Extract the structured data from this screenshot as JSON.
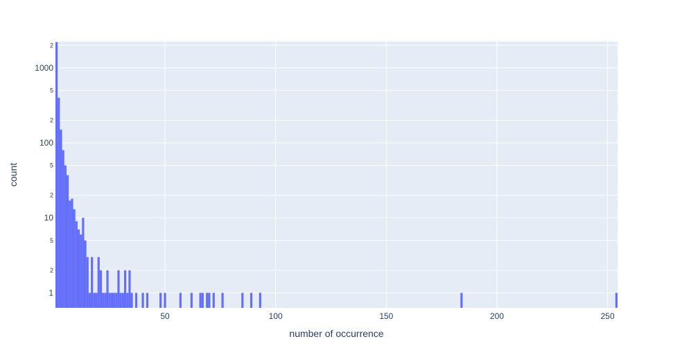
{
  "chart_data": {
    "type": "bar",
    "subtype": "histogram",
    "xlabel": "number of occurrence",
    "ylabel": "count",
    "y_scale": "log",
    "xlim": [
      1,
      254
    ],
    "ylim_log10": [
      -0.2,
      3.35
    ],
    "x_ticks": [
      "50",
      "100",
      "150",
      "200",
      "250"
    ],
    "y_major_ticks": [
      "1",
      "10",
      "100",
      "1000"
    ],
    "y_minor_ticks": [
      "2",
      "5",
      "2",
      "5",
      "2",
      "5",
      "2"
    ],
    "grid": true,
    "colors": {
      "bar": "#636efa",
      "plot_bg": "#e5ecf6",
      "grid": "#ffffff",
      "text": "#2a3f5f"
    },
    "x": [
      1,
      2,
      3,
      4,
      5,
      6,
      7,
      8,
      9,
      10,
      11,
      12,
      13,
      14,
      15,
      16,
      17,
      18,
      19,
      20,
      21,
      22,
      23,
      24,
      25,
      26,
      27,
      28,
      29,
      30,
      31,
      32,
      33,
      34,
      35,
      37,
      40,
      42,
      48,
      50,
      57,
      62,
      66,
      67,
      69,
      70,
      72,
      76,
      85,
      89,
      93,
      184,
      254
    ],
    "values": [
      2200,
      400,
      150,
      80,
      50,
      37,
      17,
      18,
      13,
      9,
      7,
      6,
      10,
      5,
      3,
      1,
      3,
      1,
      1,
      3,
      2,
      1,
      1,
      2,
      1,
      1,
      1,
      1,
      2,
      1,
      1,
      2,
      1,
      2,
      1,
      1,
      1,
      1,
      1,
      1,
      1,
      1,
      1,
      1,
      1,
      1,
      1,
      1,
      1,
      1,
      1,
      1,
      1
    ]
  }
}
